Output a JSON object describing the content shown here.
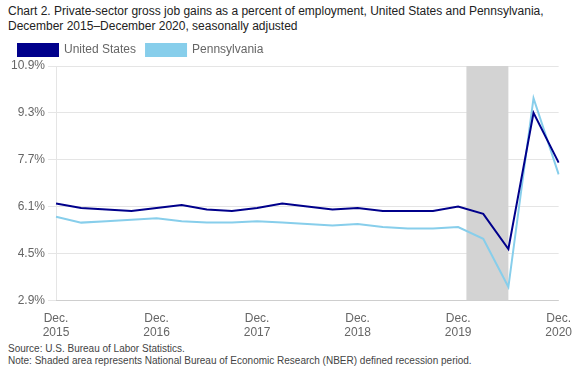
{
  "chart_data": {
    "type": "line",
    "title": "Chart 2. Private-sector gross job gains as a percent of employment, United States and Pennsylvania, December 2015–December 2020, seasonally adjusted",
    "categories": [
      "Dec.\n2015",
      null,
      null,
      null,
      "Dec.\n2016",
      null,
      null,
      null,
      "Dec.\n2017",
      null,
      null,
      null,
      "Dec.\n2018",
      null,
      null,
      null,
      "Dec.\n2019",
      null,
      null,
      null,
      "Dec.\n2020"
    ],
    "series": [
      {
        "name": "United States",
        "color": "#00008B",
        "values": [
          6.2,
          6.05,
          6.0,
          5.95,
          6.05,
          6.15,
          6.0,
          5.95,
          6.05,
          6.2,
          6.1,
          6.0,
          6.05,
          5.95,
          5.95,
          5.95,
          6.1,
          5.85,
          4.65,
          9.3,
          7.6
        ]
      },
      {
        "name": "Pennsylvania",
        "color": "#87CEEB",
        "values": [
          5.75,
          5.55,
          5.6,
          5.65,
          5.7,
          5.6,
          5.55,
          5.55,
          5.6,
          5.55,
          5.5,
          5.45,
          5.5,
          5.4,
          5.35,
          5.35,
          5.4,
          5.0,
          3.35,
          9.8,
          7.2
        ]
      }
    ],
    "ylim": [
      2.9,
      10.9
    ],
    "yticks": [
      {
        "value": 2.9,
        "label": "2.9%"
      },
      {
        "value": 4.5,
        "label": "4.5%"
      },
      {
        "value": 6.1,
        "label": "6.1%"
      },
      {
        "value": 7.7,
        "label": "7.7%"
      },
      {
        "value": 9.3,
        "label": "9.3%"
      },
      {
        "value": 10.9,
        "label": "10.9%"
      }
    ],
    "grid": true,
    "legend": "top",
    "shaded_span": {
      "from": 16.33,
      "to": 18.0,
      "color": "#D3D3D3"
    },
    "annotations": [
      "Source: U.S. Bureau of Labor Statistics.",
      "Note: Shaded area represents National Bureau of Economic Research (NBER) defined recession period."
    ]
  }
}
